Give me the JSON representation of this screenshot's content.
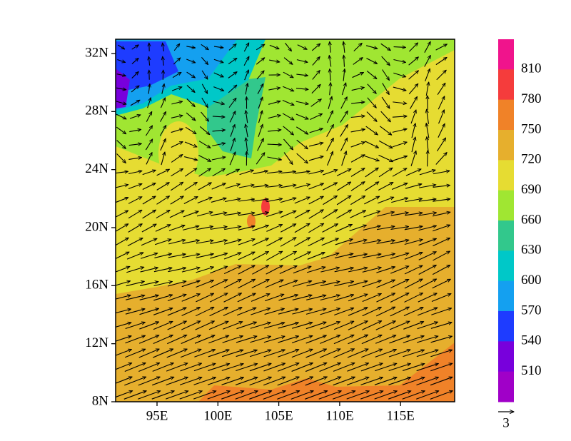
{
  "map": {
    "lat_ticks": [
      "32N",
      "28N",
      "24N",
      "20N",
      "16N",
      "12N",
      "8N"
    ],
    "lon_ticks": [
      "95E",
      "100E",
      "105E",
      "110E",
      "115E"
    ],
    "colorbar": {
      "labels": [
        810,
        780,
        750,
        720,
        690,
        660,
        630,
        600,
        570,
        540,
        510
      ],
      "colors": [
        "#f0148c",
        "#f53c3c",
        "#f08228",
        "#e6af2d",
        "#e6dc32",
        "#a0e632",
        "#32c88c",
        "#00c8c8",
        "#14a0f0",
        "#1e3cff",
        "#7800dc",
        "#a000c8"
      ]
    },
    "vector_reference": "3"
  }
}
